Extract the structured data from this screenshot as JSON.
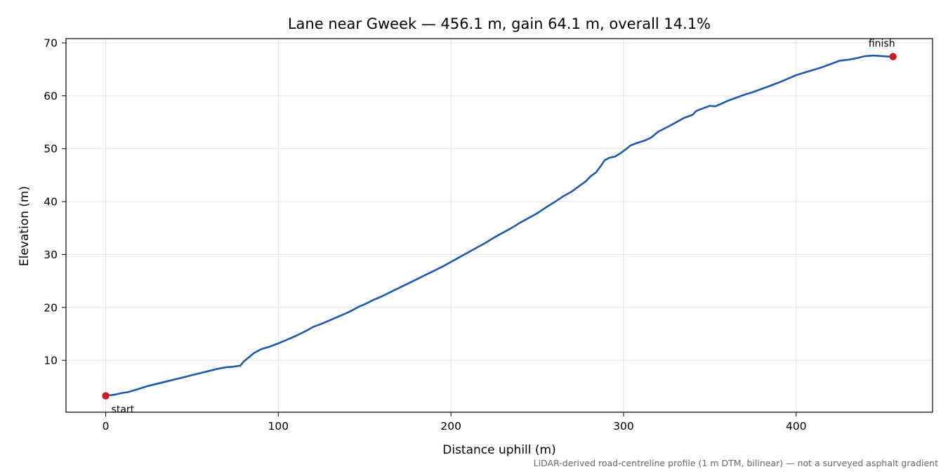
{
  "chart_data": {
    "type": "line",
    "title": "Lane near Gweek — 456.1 m, gain 64.1 m, overall 14.1%",
    "xlabel": "Distance uphill (m)",
    "ylabel": "Elevation (m)",
    "xlim": [
      -23,
      479
    ],
    "ylim": [
      0.2,
      70.8
    ],
    "xticks": [
      0,
      100,
      200,
      300,
      400
    ],
    "yticks": [
      10,
      20,
      30,
      40,
      50,
      60,
      70
    ],
    "grid": true,
    "line_color": "#1f5aa8",
    "marker_color": "#c41e24",
    "series": [
      {
        "x": [
          0,
          5,
          9,
          13,
          17,
          20,
          25,
          30,
          35,
          40,
          45,
          50,
          55,
          60,
          65,
          70,
          74,
          78,
          80,
          83,
          86,
          90,
          95,
          100,
          105,
          110,
          115,
          118,
          120,
          125,
          130,
          135,
          140,
          143,
          147,
          150,
          155,
          160,
          165,
          170,
          175,
          180,
          185,
          190,
          195,
          200,
          205,
          210,
          215,
          220,
          225,
          230,
          235,
          240,
          245,
          250,
          255,
          260,
          265,
          270,
          275,
          278,
          281,
          284,
          287,
          289,
          292,
          295,
          298,
          301,
          304,
          308,
          312,
          316,
          320,
          323,
          326,
          330,
          335,
          340,
          342,
          345,
          350,
          353,
          356,
          360,
          365,
          370,
          375,
          380,
          385,
          390,
          395,
          400,
          405,
          410,
          415,
          420,
          425,
          430,
          435,
          440,
          445,
          450,
          453,
          456.1
        ],
        "y": [
          3.3,
          3.5,
          3.8,
          4.0,
          4.4,
          4.7,
          5.2,
          5.6,
          6.0,
          6.4,
          6.8,
          7.2,
          7.6,
          8.0,
          8.4,
          8.7,
          8.8,
          9.0,
          9.8,
          10.6,
          11.4,
          12.1,
          12.6,
          13.2,
          13.9,
          14.6,
          15.4,
          15.9,
          16.3,
          16.9,
          17.6,
          18.3,
          19.0,
          19.5,
          20.2,
          20.6,
          21.4,
          22.1,
          22.9,
          23.7,
          24.5,
          25.3,
          26.1,
          26.9,
          27.7,
          28.6,
          29.5,
          30.4,
          31.3,
          32.2,
          33.2,
          34.1,
          35.0,
          36.0,
          36.9,
          37.8,
          38.9,
          39.9,
          41.0,
          41.9,
          43.1,
          43.8,
          44.8,
          45.5,
          46.8,
          47.8,
          48.3,
          48.5,
          49.1,
          49.8,
          50.6,
          51.1,
          51.5,
          52.1,
          53.2,
          53.7,
          54.2,
          54.9,
          55.8,
          56.4,
          57.1,
          57.5,
          58.1,
          58.0,
          58.4,
          59.0,
          59.6,
          60.2,
          60.7,
          61.3,
          61.9,
          62.5,
          63.2,
          63.9,
          64.4,
          64.9,
          65.4,
          66.0,
          66.6,
          66.8,
          67.1,
          67.5,
          67.6,
          67.5,
          67.4,
          67.4
        ]
      }
    ],
    "annotations": [
      {
        "text": "start",
        "x": 0,
        "y": 3.3,
        "position": "below-right"
      },
      {
        "text": "finish",
        "x": 456.1,
        "y": 67.4,
        "position": "above-left"
      }
    ],
    "footnote": "LiDAR-derived road-centreline profile (1 m DTM, bilinear) — not a surveyed asphalt gradient"
  }
}
